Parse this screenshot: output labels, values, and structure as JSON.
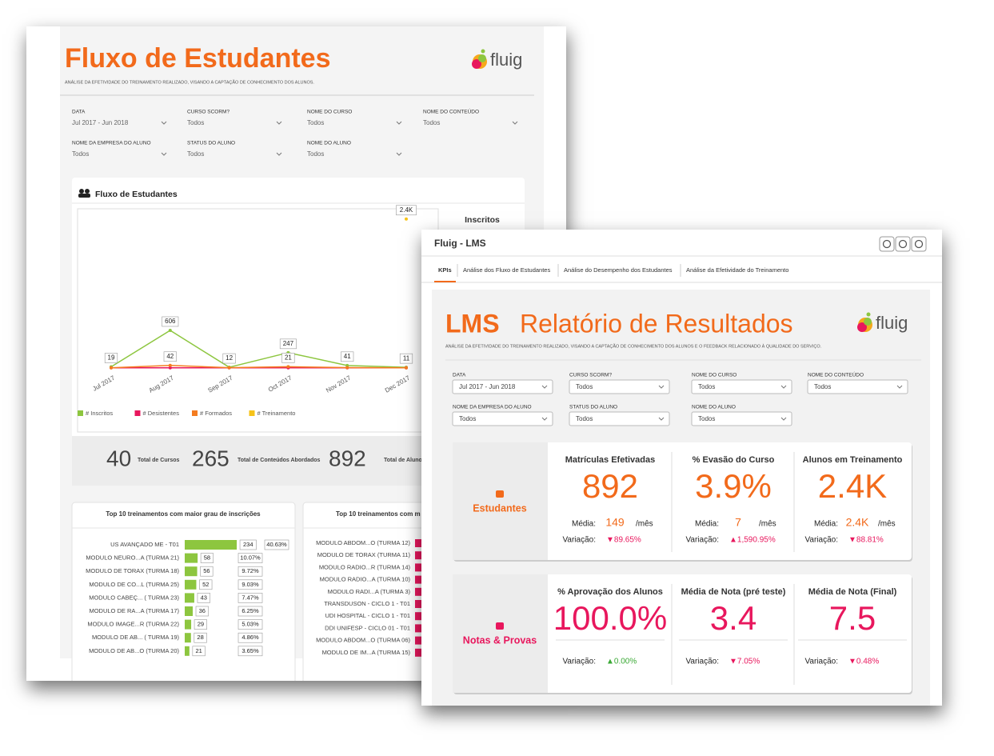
{
  "back_report": {
    "title": "Fluxo de Estudantes",
    "subtitle": "ANÁLISE DA EFETIVIDADE DO TREINAMENTO REALIZADO, VISANDO A CAPTAÇÃO DE CONHECIMENTO DOS ALUNOS.",
    "logo": "fluig",
    "filters": [
      {
        "label": "DATA",
        "value": "Jul 2017 - Jun 2018"
      },
      {
        "label": "CURSO SCORM?",
        "value": "Todos"
      },
      {
        "label": "NOME DO CURSO",
        "value": "Todos"
      },
      {
        "label": "NOME DO CONTEÚDO",
        "value": "Todos"
      },
      {
        "label": "NOME DA EMPRESA DO ALUNO",
        "value": "Todos"
      },
      {
        "label": "STATUS DO ALUNO",
        "value": "Todos"
      },
      {
        "label": "NOME DO ALUNO",
        "value": "Todos"
      }
    ],
    "chart_data": {
      "type": "line",
      "title": "Fluxo de Estudantes",
      "side_title": "Inscritos",
      "categories": [
        "Jul 2017",
        "Aug 2017",
        "Sep 2017",
        "Oct 2017",
        "Nov 2017",
        "Dec 2017"
      ],
      "ylim": [
        0,
        2500
      ],
      "series": [
        {
          "name": "# Inscritos",
          "color": "#8dc63f",
          "values": [
            19,
            606,
            12,
            247,
            41,
            11
          ],
          "show_values": true
        },
        {
          "name": "# Desistentes",
          "color": "#e8175d",
          "values": [
            3,
            4,
            3,
            4,
            3,
            3
          ]
        },
        {
          "name": "# Formados",
          "color": "#f47c20",
          "values": [
            4,
            42,
            5,
            21,
            6,
            4
          ],
          "value_labels": [
            null,
            "42",
            null,
            "21",
            null,
            null
          ]
        },
        {
          "name": "# Treinamento",
          "color": "#f6c319",
          "values": [
            null,
            null,
            null,
            null,
            null,
            2400
          ],
          "value_labels": [
            null,
            null,
            null,
            null,
            null,
            "2.4K"
          ]
        }
      ]
    },
    "totals": [
      {
        "value": 40,
        "label": "Total de Cursos"
      },
      {
        "value": 265,
        "label": "Total de Conteúdos Abordados"
      },
      {
        "value": 892,
        "label": "Total de Alunos"
      }
    ],
    "top_enrollments": {
      "title": "Top 10 treinamentos com maior grau de inscrições",
      "rows": [
        {
          "name": "US AVANÇADO ME - T01",
          "count": 234,
          "share": "40.63%"
        },
        {
          "name": "MODULO NEURO...A (TURMA 21)",
          "count": 58,
          "share": "10.07%"
        },
        {
          "name": "MODULO DE TORAX (TURMA 18)",
          "count": 56,
          "share": "9.72%"
        },
        {
          "name": "MODULO DE CO...L (TURMA 25)",
          "count": 52,
          "share": "9.03%"
        },
        {
          "name": "MODULO CABEÇ... ( TURMA 23)",
          "count": 43,
          "share": "7.47%"
        },
        {
          "name": "MODULO DE RA...A (TURMA 17)",
          "count": 36,
          "share": "6.25%"
        },
        {
          "name": "MODULO IMAGE...R (TURMA 22)",
          "count": 29,
          "share": "5.03%"
        },
        {
          "name": "MODULO DE AB... ( TURMA 19)",
          "count": 28,
          "share": "4.86%"
        },
        {
          "name": "MODULO DE AB...O (TURMA 20)",
          "count": 21,
          "share": "3.65%"
        }
      ]
    },
    "top_second": {
      "title": "Top 10 treinamentos com m",
      "rows": [
        "MODULO ABDOM...O (TURMA 12)",
        "MODULO DE TORAX (TURMA 11)",
        "MODULO RADIO...R (TURMA 14)",
        "MODULO RADIO...A (TURMA 10)",
        "MODULO RADI...A (TURMA 3)",
        "TRANSDUSON - CICLO 1 - T01",
        "UDI HOSPITAL - CICLO 1 - T01",
        "DDI UNIFESP - CICLO 01 - T01",
        "MODULO ABDOM...O (TURMA 06)",
        "MODULO DE IM...A (TURMA 15)"
      ]
    }
  },
  "lms": {
    "window_title": "Fluig - LMS",
    "tabs": [
      "KPIs",
      "Análise dos Fluxo de Estudantes",
      "Análise do Desempenho dos Estudantes",
      "Análise da Efetividade do Treinamento"
    ],
    "title_bold": "LMS",
    "title": "Relatório de Resultados",
    "subtitle": "ANÁLISE DA EFETIVIDADE DO TREINAMENTO REALIZADO, VISANDO A CAPTAÇÃO DE CONHECIMENTO DOS ALUNOS E O FEEDBACK RELACIONADO À QUALIDADE DO SERVIÇO.",
    "logo": "fluig",
    "filters": [
      {
        "label": "DATA",
        "value": "Jul 2017 - Jun 2018"
      },
      {
        "label": "CURSO SCORM?",
        "value": "Todos"
      },
      {
        "label": "NOME DO CURSO",
        "value": "Todos"
      },
      {
        "label": "NOME DO CONTEÚDO",
        "value": "Todos"
      },
      {
        "label": "NOME DA EMPRESA DO ALUNO",
        "value": "Todos"
      },
      {
        "label": "STATUS DO ALUNO",
        "value": "Todos"
      },
      {
        "label": "NOME DO ALUNO",
        "value": "Todos"
      }
    ],
    "labels": {
      "average": "Média:",
      "per_month": "/mês",
      "variation": "Variação:"
    },
    "groups": [
      {
        "name": "Estudantes",
        "color": "#f26a1b",
        "kpis": [
          {
            "title": "Matrículas Efetivadas",
            "value": "892",
            "average": "149",
            "variation": "▼89.65%",
            "variation_color": "#e8175d"
          },
          {
            "title": "% Evasão do Curso",
            "value": "3.9%",
            "average": "7",
            "variation": "▲1,590.95%",
            "variation_color": "#e8175d"
          },
          {
            "title": "Alunos em Treinamento",
            "value": "2.4K",
            "average": "2.4K",
            "variation": "▼88.81%",
            "variation_color": "#e8175d"
          }
        ]
      },
      {
        "name": "Notas & Provas",
        "color": "#e8175d",
        "kpis": [
          {
            "title": "% Aprovação dos Alunos",
            "value": "100.0%",
            "variation": "▲0.00%",
            "variation_color": "#3aa935"
          },
          {
            "title": "Média de Nota (pré teste)",
            "value": "3.4",
            "variation": "▼7.05%",
            "variation_color": "#e8175d"
          },
          {
            "title": "Média de Nota (Final)",
            "value": "7.5",
            "variation": "▼0.48%",
            "variation_color": "#e8175d"
          }
        ]
      }
    ]
  }
}
